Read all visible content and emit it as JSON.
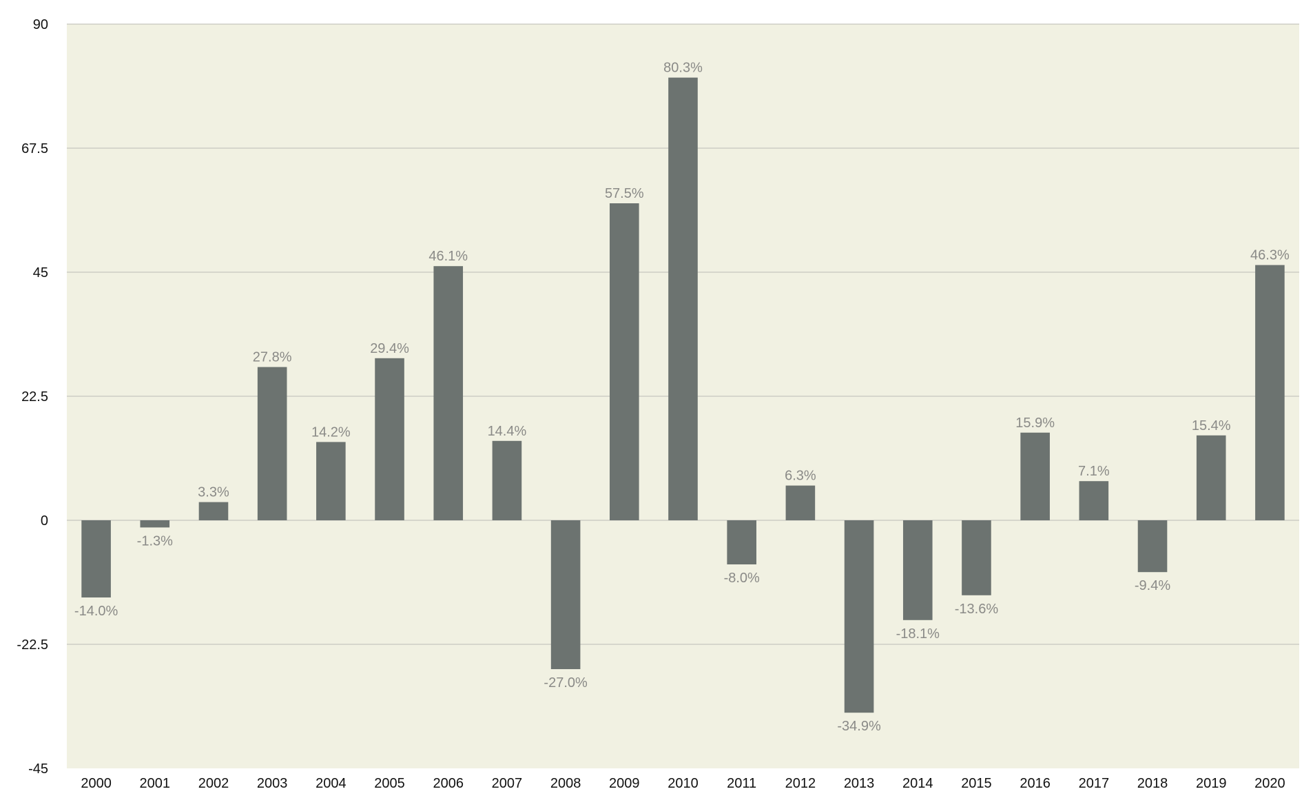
{
  "chart_data": {
    "type": "bar",
    "title": "",
    "xlabel": "",
    "ylabel": "",
    "ylim": [
      -45,
      90
    ],
    "yticks": [
      "90",
      "67.5",
      "45",
      "22.5",
      "0",
      "-22.5",
      "-45"
    ],
    "ytick_values": [
      90,
      67.5,
      45,
      22.5,
      0,
      -22.5,
      -45
    ],
    "grid": true,
    "legend": "none",
    "categories": [
      "2000",
      "2001",
      "2002",
      "2003",
      "2004",
      "2005",
      "2006",
      "2007",
      "2008",
      "2009",
      "2010",
      "2011",
      "2012",
      "2013",
      "2014",
      "2015",
      "2016",
      "2017",
      "2018",
      "2019",
      "2020"
    ],
    "values": [
      -14.0,
      -1.3,
      3.3,
      27.8,
      14.2,
      29.4,
      46.1,
      14.4,
      -27.0,
      57.5,
      80.3,
      -8.0,
      6.3,
      -34.9,
      -18.1,
      -13.6,
      15.9,
      7.1,
      -9.4,
      15.4,
      46.3
    ],
    "data_labels": [
      "-14.0%",
      "-1.3%",
      "3.3%",
      "27.8%",
      "14.2%",
      "29.4%",
      "46.1%",
      "14.4%",
      "-27.0%",
      "57.5%",
      "80.3%",
      "-8.0%",
      "6.3%",
      "-34.9%",
      "-18.1%",
      "-13.6%",
      "15.9%",
      "7.1%",
      "-9.4%",
      "15.4%",
      "46.3%"
    ],
    "colors": {
      "plot_background": "#f1f1e2",
      "bar": "#6c7370",
      "gridline": "#c5c6be",
      "data_label": "#8a8a87",
      "tick_label": "#111111"
    }
  }
}
